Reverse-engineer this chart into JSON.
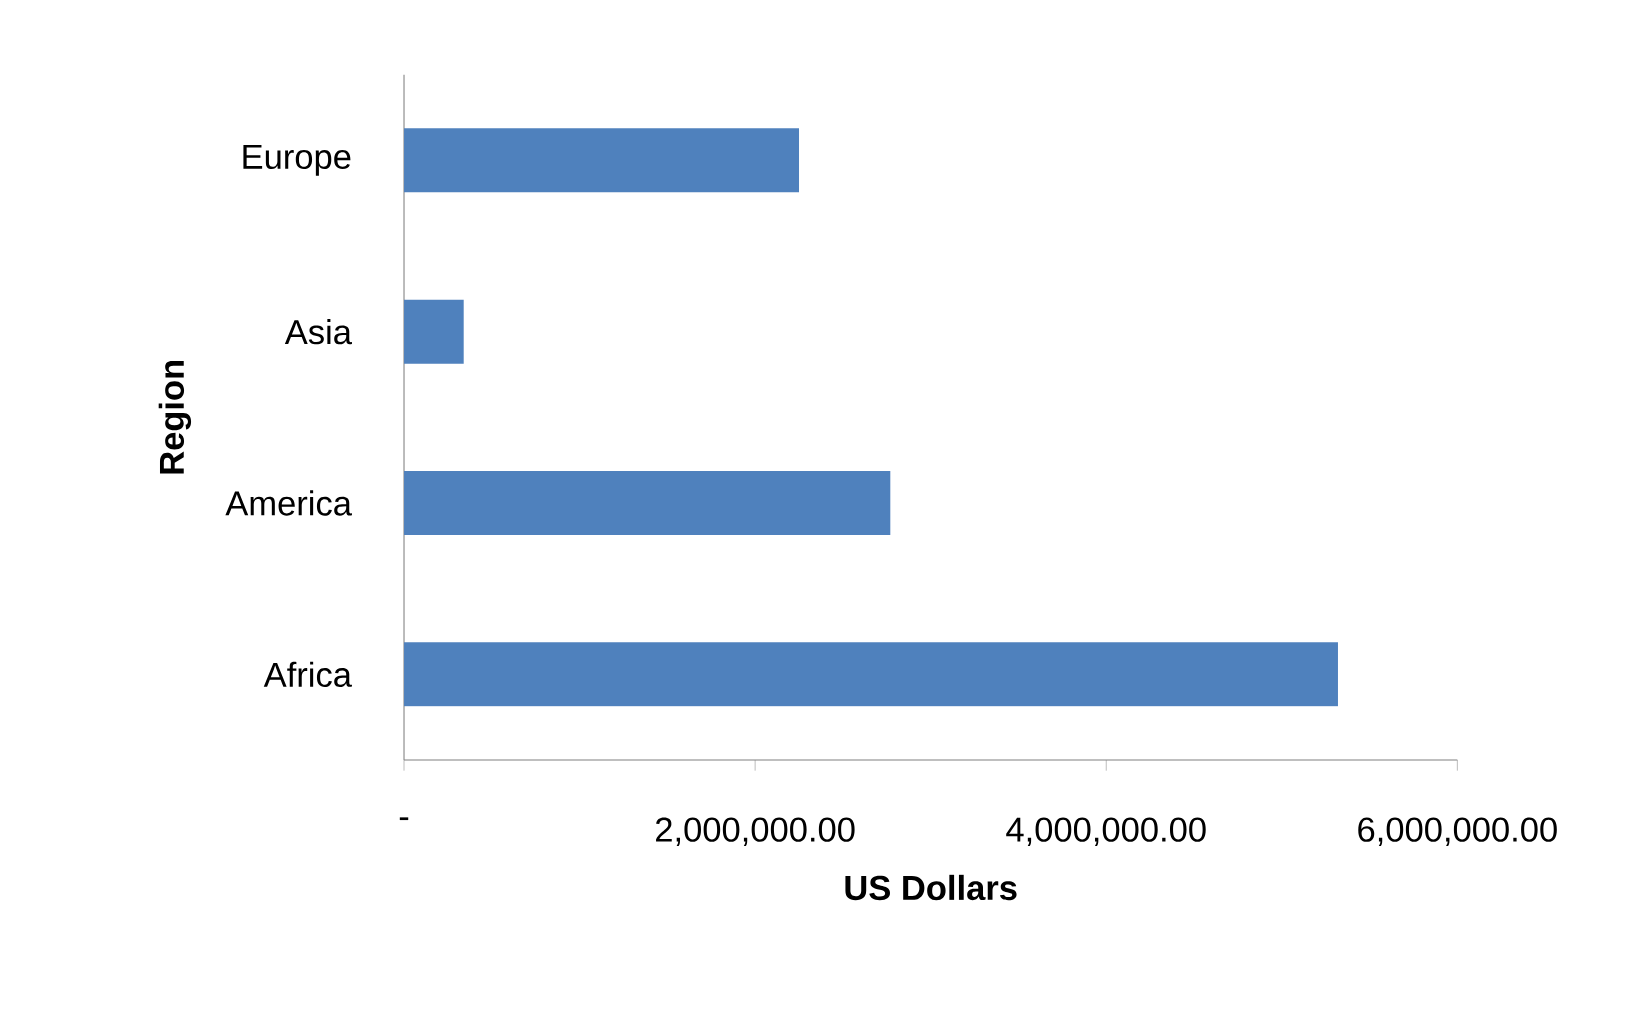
{
  "chart_data": {
    "type": "bar",
    "orientation": "horizontal",
    "xlabel": "US Dollars",
    "ylabel": "Region",
    "categories": [
      "Europe",
      "Asia",
      "America",
      "Africa"
    ],
    "values": [
      2250000,
      340000,
      2770000,
      5320000
    ],
    "color": "#4f81bd",
    "xlim": [
      0,
      6000000
    ],
    "xticks": [
      {
        "value": 0,
        "label": "-"
      },
      {
        "value": 2000000,
        "label": "2,000,000.00"
      },
      {
        "value": 4000000,
        "label": "4,000,000.00"
      },
      {
        "value": 6000000,
        "label": "6,000,000.00"
      }
    ],
    "grid": false
  }
}
